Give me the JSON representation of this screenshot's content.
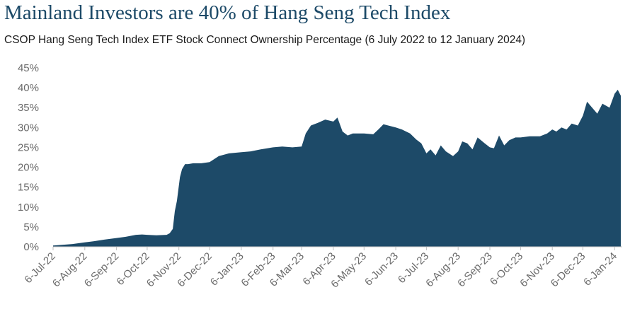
{
  "chart_data": {
    "type": "area",
    "title": "Mainland Investors are 40% of Hang Seng Tech Index",
    "subtitle": "CSOP Hang Seng Tech Index ETF Stock Connect Ownership Percentage (6 July 2022 to 12 January 2024)",
    "xlabel": "",
    "ylabel": "",
    "x_range": [
      "2022-07-06",
      "2024-01-12"
    ],
    "ylim": [
      0,
      45
    ],
    "y_ticks": [
      "0%",
      "5%",
      "10%",
      "15%",
      "20%",
      "25%",
      "30%",
      "35%",
      "40%",
      "45%"
    ],
    "x_ticks": [
      "6-Jul-22",
      "6-Aug-22",
      "6-Sep-22",
      "6-Oct-22",
      "6-Nov-22",
      "6-Dec-22",
      "6-Jan-23",
      "6-Feb-23",
      "6-Mar-23",
      "6-Apr-23",
      "6-May-23",
      "6-Jun-23",
      "6-Jul-23",
      "6-Aug-23",
      "6-Sep-23",
      "6-Oct-23",
      "6-Nov-23",
      "6-Dec-23",
      "6-Jan-24"
    ],
    "x_tick_dates": [
      "2022-07-06",
      "2022-08-06",
      "2022-09-06",
      "2022-10-06",
      "2022-11-06",
      "2022-12-06",
      "2023-01-06",
      "2023-02-06",
      "2023-03-06",
      "2023-04-06",
      "2023-05-06",
      "2023-06-06",
      "2023-07-06",
      "2023-08-06",
      "2023-09-06",
      "2023-10-06",
      "2023-11-06",
      "2023-12-06",
      "2024-01-06"
    ],
    "grid": false,
    "legend": "none",
    "color": "#1d4a68",
    "series": [
      {
        "x": [
          "2022-07-06",
          "2022-07-15",
          "2022-07-25",
          "2022-08-06",
          "2022-08-15",
          "2022-08-25",
          "2022-09-06",
          "2022-09-15",
          "2022-09-25",
          "2022-10-01",
          "2022-10-06",
          "2022-10-15",
          "2022-10-25",
          "2022-10-28",
          "2022-10-31",
          "2022-11-02",
          "2022-11-04",
          "2022-11-07",
          "2022-11-09",
          "2022-11-12",
          "2022-11-15",
          "2022-11-20",
          "2022-11-28",
          "2022-12-06",
          "2022-12-15",
          "2022-12-25",
          "2023-01-06",
          "2023-01-15",
          "2023-01-25",
          "2023-02-06",
          "2023-02-15",
          "2023-02-25",
          "2023-03-06",
          "2023-03-10",
          "2023-03-15",
          "2023-03-22",
          "2023-03-29",
          "2023-04-06",
          "2023-04-10",
          "2023-04-15",
          "2023-04-20",
          "2023-04-25",
          "2023-05-06",
          "2023-05-15",
          "2023-05-20",
          "2023-05-25",
          "2023-06-06",
          "2023-06-12",
          "2023-06-20",
          "2023-06-26",
          "2023-07-01",
          "2023-07-06",
          "2023-07-10",
          "2023-07-15",
          "2023-07-20",
          "2023-07-25",
          "2023-08-01",
          "2023-08-06",
          "2023-08-10",
          "2023-08-15",
          "2023-08-20",
          "2023-08-25",
          "2023-09-01",
          "2023-09-06",
          "2023-09-10",
          "2023-09-15",
          "2023-09-20",
          "2023-09-25",
          "2023-10-01",
          "2023-10-06",
          "2023-10-15",
          "2023-10-25",
          "2023-11-01",
          "2023-11-06",
          "2023-11-10",
          "2023-11-15",
          "2023-11-20",
          "2023-11-25",
          "2023-12-01",
          "2023-12-06",
          "2023-12-10",
          "2023-12-15",
          "2023-12-20",
          "2023-12-25",
          "2024-01-01",
          "2024-01-06",
          "2024-01-09",
          "2024-01-12"
        ],
        "values": [
          0.3,
          0.5,
          0.7,
          1.1,
          1.4,
          1.8,
          2.2,
          2.5,
          3.0,
          3.1,
          3.0,
          2.9,
          3.0,
          3.4,
          4.5,
          9.0,
          11.5,
          17.5,
          19.5,
          20.8,
          20.8,
          21.0,
          21.0,
          21.3,
          22.8,
          23.5,
          23.8,
          24.0,
          24.5,
          25.0,
          25.2,
          25.0,
          25.2,
          28.5,
          30.5,
          31.2,
          32.0,
          31.5,
          32.5,
          29.0,
          28.0,
          28.5,
          28.5,
          28.3,
          29.5,
          30.8,
          30.0,
          29.5,
          28.5,
          27.0,
          26.0,
          23.5,
          24.5,
          23.0,
          25.5,
          24.0,
          22.8,
          24.0,
          26.5,
          26.0,
          24.5,
          27.5,
          26.0,
          25.0,
          24.8,
          28.0,
          25.5,
          26.8,
          27.5,
          27.5,
          27.8,
          27.8,
          28.5,
          29.5,
          29.0,
          30.0,
          29.5,
          31.0,
          30.5,
          33.0,
          36.5,
          35.0,
          33.5,
          36.0,
          35.0,
          38.5,
          39.5,
          38.0
        ]
      }
    ]
  }
}
